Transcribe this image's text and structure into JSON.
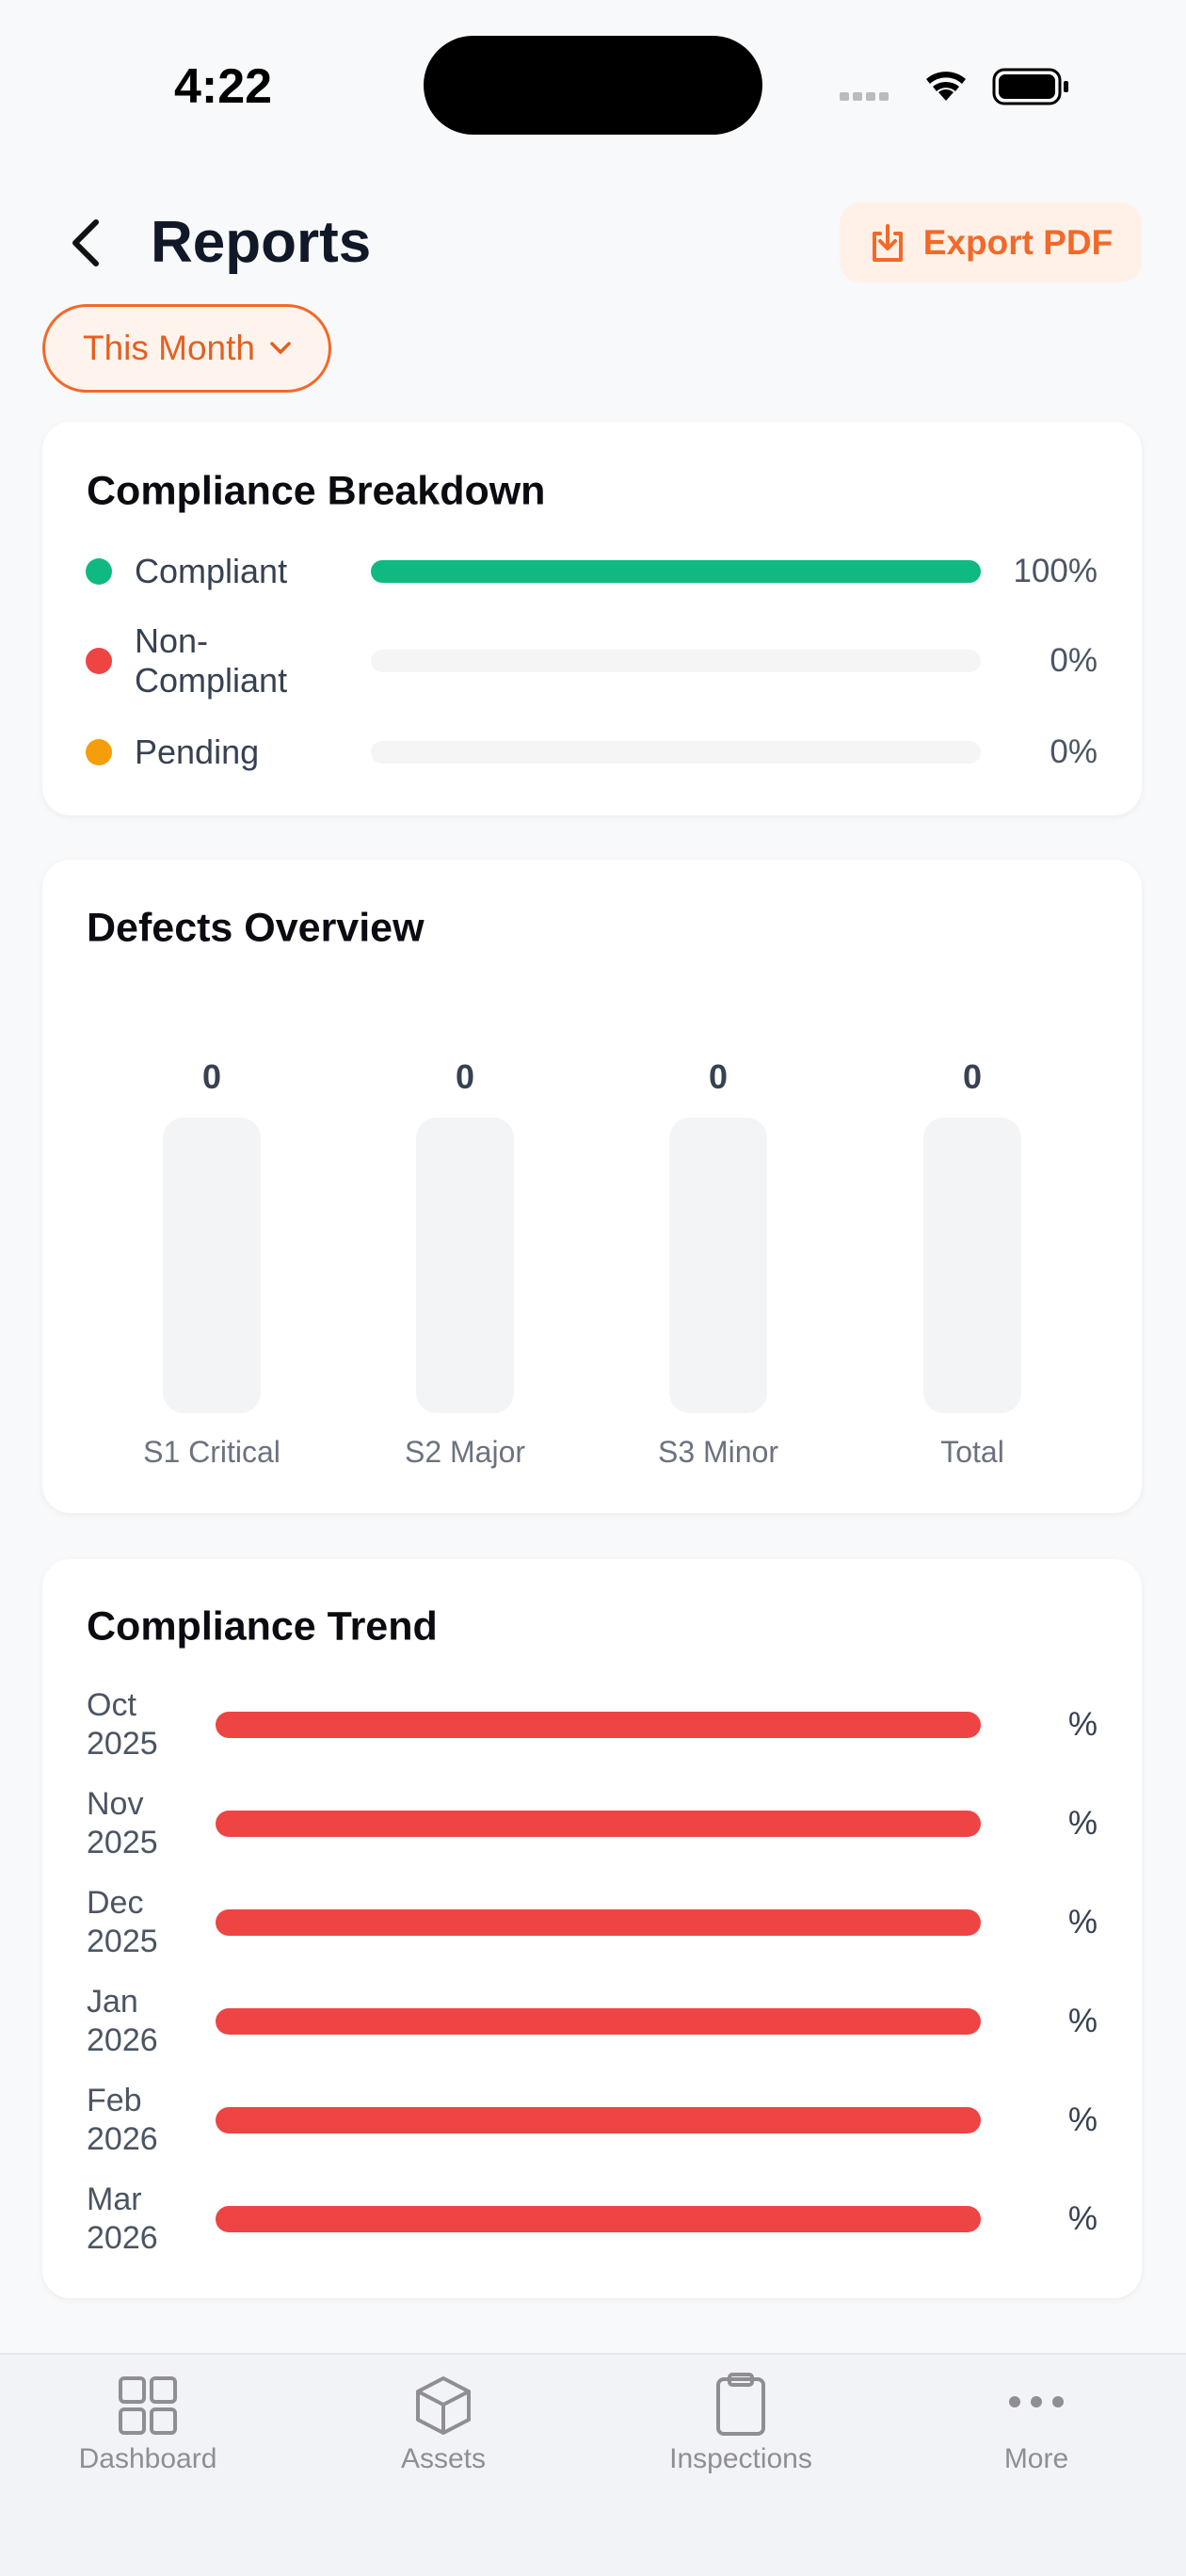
{
  "status_bar": {
    "time": "4:22"
  },
  "header": {
    "title": "Reports",
    "export_button": "Export PDF",
    "period_filter": "This Month"
  },
  "compliance_breakdown": {
    "title": "Compliance Breakdown",
    "items": [
      {
        "name": "Compliant",
        "value": 100,
        "value_label": "100%",
        "color": "#10b981"
      },
      {
        "name": "Non-Compliant",
        "value": 0,
        "value_label": "0%",
        "color": "#ef4444"
      },
      {
        "name": "Pending",
        "value": 0,
        "value_label": "0%",
        "color": "#f59e0b"
      }
    ]
  },
  "defects_overview": {
    "title": "Defects Overview",
    "categories": [
      "S1 Critical",
      "S2 Major",
      "S3 Minor",
      "Total"
    ],
    "values": [
      0,
      0,
      0,
      0
    ]
  },
  "compliance_trend": {
    "title": "Compliance Trend",
    "months": [
      "Oct 2025",
      "Nov 2025",
      "Dec 2025",
      "Jan 2026",
      "Feb 2026",
      "Mar 2026"
    ],
    "value_label": "%",
    "color": "#ef4444"
  },
  "tab_bar": {
    "tabs": [
      "Dashboard",
      "Assets",
      "Inspections",
      "More"
    ]
  }
}
